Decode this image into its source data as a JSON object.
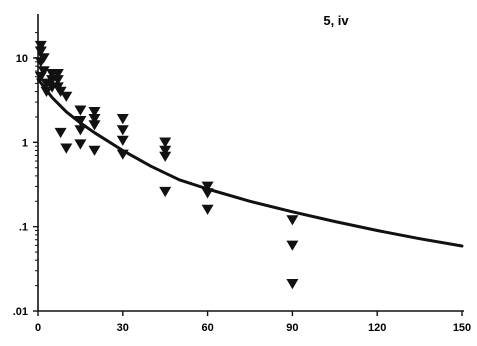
{
  "chart_data": {
    "type": "scatter",
    "annotation": "5, iv",
    "xlim": [
      0,
      150
    ],
    "ylim": [
      0.01,
      20
    ],
    "y_scale": "log",
    "grid": false,
    "legend": "none",
    "marker": "triangle-down",
    "color": "#111111",
    "x_ticks": [
      0,
      30,
      60,
      90,
      120,
      150
    ],
    "x_tick_labels": [
      "0",
      "30",
      "60",
      "90",
      "120",
      "150"
    ],
    "y_ticks": [
      10,
      1,
      0.1,
      0.01
    ],
    "y_tick_labels": [
      "10",
      "1",
      ".1",
      ".01"
    ],
    "points": [
      {
        "x": 1,
        "y": 14
      },
      {
        "x": 1,
        "y": 12
      },
      {
        "x": 1,
        "y": 9
      },
      {
        "x": 1,
        "y": 6
      },
      {
        "x": 2,
        "y": 10
      },
      {
        "x": 2,
        "y": 7
      },
      {
        "x": 3,
        "y": 5
      },
      {
        "x": 3,
        "y": 4
      },
      {
        "x": 5,
        "y": 6.5
      },
      {
        "x": 5,
        "y": 5.5
      },
      {
        "x": 5,
        "y": 4.5
      },
      {
        "x": 7,
        "y": 6.5
      },
      {
        "x": 7,
        "y": 5.5
      },
      {
        "x": 7,
        "y": 4.5
      },
      {
        "x": 8,
        "y": 4
      },
      {
        "x": 8,
        "y": 1.3
      },
      {
        "x": 10,
        "y": 3.5
      },
      {
        "x": 10,
        "y": 0.85
      },
      {
        "x": 15,
        "y": 2.4
      },
      {
        "x": 15,
        "y": 1.8
      },
      {
        "x": 15,
        "y": 1.4
      },
      {
        "x": 15,
        "y": 0.95
      },
      {
        "x": 20,
        "y": 2.3
      },
      {
        "x": 20,
        "y": 1.9
      },
      {
        "x": 20,
        "y": 1.6
      },
      {
        "x": 20,
        "y": 0.8
      },
      {
        "x": 30,
        "y": 1.9
      },
      {
        "x": 30,
        "y": 1.4
      },
      {
        "x": 30,
        "y": 1.05
      },
      {
        "x": 30,
        "y": 0.72
      },
      {
        "x": 45,
        "y": 1.0
      },
      {
        "x": 45,
        "y": 0.8
      },
      {
        "x": 45,
        "y": 0.68
      },
      {
        "x": 45,
        "y": 0.26
      },
      {
        "x": 60,
        "y": 0.3
      },
      {
        "x": 60,
        "y": 0.25
      },
      {
        "x": 60,
        "y": 0.16
      },
      {
        "x": 90,
        "y": 0.12
      },
      {
        "x": 90,
        "y": 0.06
      },
      {
        "x": 90,
        "y": 0.021
      }
    ],
    "fit_curve": {
      "name": "",
      "x": [
        0,
        5,
        10,
        15,
        20,
        30,
        40,
        50,
        60,
        75,
        90,
        105,
        120,
        135,
        150
      ],
      "y": [
        5.6,
        3.4,
        2.3,
        1.7,
        1.3,
        0.8,
        0.52,
        0.36,
        0.28,
        0.2,
        0.15,
        0.115,
        0.09,
        0.072,
        0.059
      ]
    }
  }
}
